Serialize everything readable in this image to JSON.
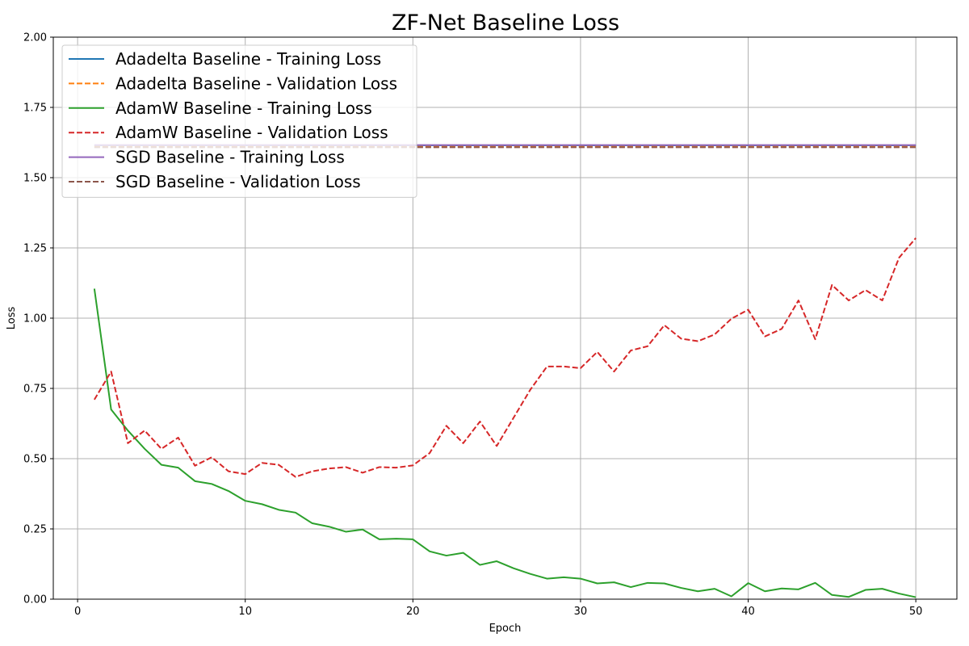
{
  "chart_data": {
    "type": "line",
    "title": "ZF-Net Baseline Loss",
    "xlabel": "Epoch",
    "ylabel": "Loss",
    "xlim": [
      -1.45,
      52.45
    ],
    "ylim": [
      0,
      2.0
    ],
    "xticks": [
      0,
      10,
      20,
      30,
      40,
      50
    ],
    "yticks": [
      0.0,
      0.25,
      0.5,
      0.75,
      1.0,
      1.25,
      1.5,
      1.75,
      2.0
    ],
    "grid": true,
    "legend_position": "top-left",
    "x": [
      1,
      2,
      3,
      4,
      5,
      6,
      7,
      8,
      9,
      10,
      11,
      12,
      13,
      14,
      15,
      16,
      17,
      18,
      19,
      20,
      21,
      22,
      23,
      24,
      25,
      26,
      27,
      28,
      29,
      30,
      31,
      32,
      33,
      34,
      35,
      36,
      37,
      38,
      39,
      40,
      41,
      42,
      43,
      44,
      45,
      46,
      47,
      48,
      49,
      50
    ],
    "series": [
      {
        "name": "Adadelta Baseline - Training Loss",
        "color": "#1f77b4",
        "dashed": false,
        "values": [
          1.615,
          1.615,
          1.615,
          1.615,
          1.615,
          1.615,
          1.615,
          1.615,
          1.615,
          1.615,
          1.615,
          1.615,
          1.615,
          1.615,
          1.615,
          1.615,
          1.615,
          1.615,
          1.615,
          1.615,
          1.615,
          1.615,
          1.615,
          1.615,
          1.615,
          1.615,
          1.615,
          1.615,
          1.615,
          1.615,
          1.615,
          1.615,
          1.615,
          1.615,
          1.615,
          1.615,
          1.615,
          1.615,
          1.615,
          1.615,
          1.615,
          1.615,
          1.615,
          1.615,
          1.615,
          1.615,
          1.615,
          1.615,
          1.615,
          1.615
        ]
      },
      {
        "name": "Adadelta Baseline - Validation Loss",
        "color": "#ff7f0e",
        "dashed": true,
        "values": [
          1.61,
          1.61,
          1.61,
          1.61,
          1.61,
          1.61,
          1.61,
          1.61,
          1.61,
          1.61,
          1.61,
          1.61,
          1.61,
          1.61,
          1.61,
          1.61,
          1.61,
          1.61,
          1.61,
          1.61,
          1.61,
          1.61,
          1.61,
          1.61,
          1.61,
          1.61,
          1.61,
          1.61,
          1.61,
          1.61,
          1.61,
          1.61,
          1.61,
          1.61,
          1.61,
          1.61,
          1.61,
          1.61,
          1.61,
          1.61,
          1.61,
          1.61,
          1.61,
          1.61,
          1.61,
          1.61,
          1.61,
          1.61,
          1.61,
          1.61
        ]
      },
      {
        "name": "AdamW Baseline - Training Loss",
        "color": "#2ca02c",
        "dashed": false,
        "values": [
          1.105,
          0.675,
          0.6,
          0.535,
          0.478,
          0.468,
          0.42,
          0.41,
          0.385,
          0.35,
          0.338,
          0.318,
          0.308,
          0.27,
          0.258,
          0.24,
          0.248,
          0.213,
          0.215,
          0.213,
          0.17,
          0.155,
          0.165,
          0.122,
          0.135,
          0.11,
          0.09,
          0.073,
          0.078,
          0.073,
          0.056,
          0.06,
          0.043,
          0.058,
          0.056,
          0.04,
          0.028,
          0.037,
          0.01,
          0.057,
          0.028,
          0.038,
          0.035,
          0.058,
          0.015,
          0.008,
          0.033,
          0.037,
          0.02,
          0.007
        ]
      },
      {
        "name": "AdamW Baseline - Validation Loss",
        "color": "#d62728",
        "dashed": true,
        "values": [
          0.71,
          0.81,
          0.555,
          0.6,
          0.535,
          0.575,
          0.475,
          0.505,
          0.455,
          0.445,
          0.485,
          0.478,
          0.435,
          0.455,
          0.465,
          0.47,
          0.45,
          0.47,
          0.468,
          0.476,
          0.52,
          0.617,
          0.555,
          0.632,
          0.545,
          0.645,
          0.745,
          0.828,
          0.828,
          0.822,
          0.88,
          0.81,
          0.885,
          0.9,
          0.975,
          0.927,
          0.918,
          0.942,
          0.998,
          1.03,
          0.935,
          0.962,
          1.063,
          0.925,
          1.118,
          1.063,
          1.1,
          1.063,
          1.215,
          1.285
        ]
      },
      {
        "name": "SGD Baseline - Training Loss",
        "color": "#9467bd",
        "dashed": false,
        "values": [
          1.616,
          1.616,
          1.616,
          1.616,
          1.616,
          1.616,
          1.616,
          1.616,
          1.616,
          1.616,
          1.616,
          1.616,
          1.616,
          1.616,
          1.616,
          1.616,
          1.616,
          1.616,
          1.616,
          1.616,
          1.616,
          1.616,
          1.616,
          1.616,
          1.616,
          1.616,
          1.616,
          1.616,
          1.616,
          1.616,
          1.616,
          1.616,
          1.616,
          1.616,
          1.616,
          1.616,
          1.616,
          1.616,
          1.616,
          1.616,
          1.616,
          1.616,
          1.616,
          1.616,
          1.616,
          1.616,
          1.616,
          1.616,
          1.616,
          1.616
        ]
      },
      {
        "name": "SGD Baseline - Validation Loss",
        "color": "#8c564b",
        "dashed": true,
        "values": [
          1.608,
          1.608,
          1.608,
          1.608,
          1.608,
          1.608,
          1.608,
          1.608,
          1.608,
          1.608,
          1.608,
          1.608,
          1.608,
          1.608,
          1.608,
          1.608,
          1.608,
          1.608,
          1.608,
          1.608,
          1.608,
          1.608,
          1.608,
          1.608,
          1.608,
          1.608,
          1.608,
          1.608,
          1.608,
          1.608,
          1.608,
          1.608,
          1.608,
          1.608,
          1.608,
          1.608,
          1.608,
          1.608,
          1.608,
          1.608,
          1.608,
          1.608,
          1.608,
          1.608,
          1.608,
          1.608,
          1.608,
          1.608,
          1.608,
          1.608
        ]
      }
    ]
  }
}
